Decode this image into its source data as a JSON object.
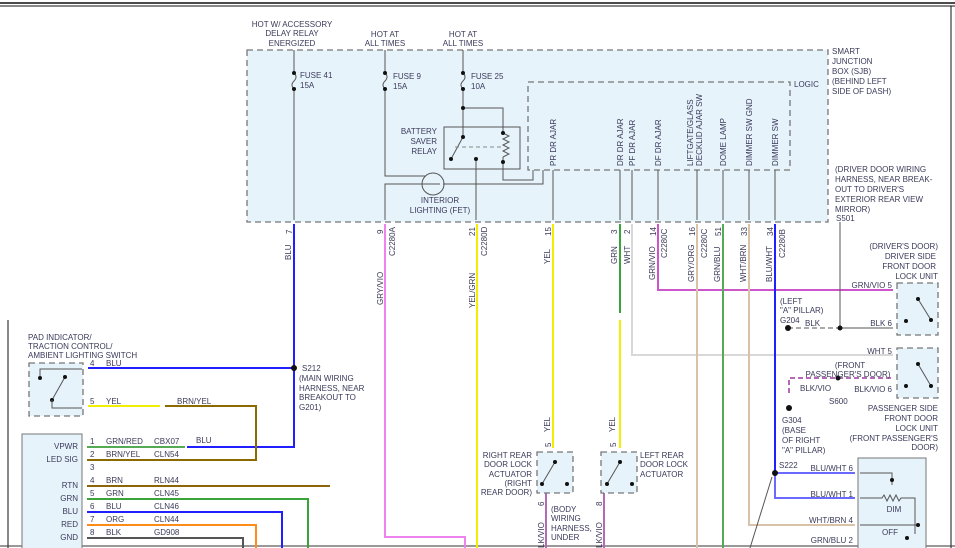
{
  "wire_colors": {
    "BLU": "#1f1fff",
    "GRYVIO": "#ee82ee",
    "YEL": "#f2ee00",
    "GRN": "#3aa33a",
    "WHT": "#d8d8d8",
    "GRNVIO": "#cc55cc",
    "TAN": "#d9c3a8",
    "GRNBLU": "#55aa55",
    "BRNYEL": "#8b6a00",
    "BRN": "#8b6508",
    "ORG": "#ff8c1a",
    "BLK": "#555555",
    "BLUWHT": "#6a6aff",
    "BLKVIO": "#b46ab4",
    "box_fill": "#e6f3fb"
  },
  "power": {
    "acc": [
      "HOT W/ ACCESSORY",
      "DELAY RELAY",
      "ENERGIZED"
    ],
    "hot1": [
      "HOT AT",
      "ALL TIMES"
    ],
    "hot2": [
      "HOT AT",
      "ALL TIMES"
    ]
  },
  "fuses": [
    {
      "name": "FUSE 41",
      "rating": "15A"
    },
    {
      "name": "FUSE 9",
      "rating": "15A"
    },
    {
      "name": "FUSE 25",
      "rating": "10A"
    }
  ],
  "relay": [
    "BATTERY",
    "SAVER",
    "RELAY"
  ],
  "fet": [
    "INTERIOR",
    "LIGHTING (FET)"
  ],
  "sjb": [
    "SMART",
    "JUNCTION",
    "BOX (SJB)",
    "(BEHIND LEFT",
    "SIDE OF DASH)"
  ],
  "logic": "LOGIC",
  "logic_pins": [
    "PR DR AJAR",
    "DR DR AJAR",
    "PF DR AJAR",
    "DF DR AJAR",
    "LIFTGATE/GLASS",
    "DECKLID AJAR SW",
    "DOME LAMP",
    "DIMMER SW GND",
    "DIMMER SW"
  ],
  "s501": [
    "(DRIVER DOOR WIRING",
    "HARNESS, NEAR BREAK-",
    "OUT TO DRIVER'S",
    "EXTERIOR REAR VIEW",
    "MIRROR)",
    "S501"
  ],
  "pins": {
    "p7": "7",
    "p9": "9",
    "p21": "21",
    "p15": "15",
    "p3": "3",
    "p2": "2",
    "p14": "14",
    "p16": "16",
    "p51": "51",
    "p33": "33",
    "p34": "34"
  },
  "connectors": {
    "a": "C2280A",
    "d": "C2280D",
    "c1": "C2280C",
    "c2": "C2280C",
    "b": "C2280B"
  },
  "wires": {
    "blu": "BLU",
    "gryvio": "GRY/VIO",
    "yelgrn": "YEL/GRN",
    "yel": "YEL",
    "grn": "GRN",
    "wht": "WHT",
    "grnvio": "GRN/VIO",
    "gryorg": "GRY/ORG",
    "grnblu": "GRN/BLU",
    "whtbrn": "WHT/BRN",
    "bluwht": "BLU/WHT",
    "yel2": "YEL",
    "yel3": "YEL",
    "lkvio1": "LK/VIO",
    "lkvio2": "LK/VIO"
  },
  "s212": [
    "S212",
    "(MAIN WIRING",
    "HARNESS, NEAR",
    "BREAKOUT TO",
    "G201)"
  ],
  "pad_switch": {
    "title": [
      "PAD INDICATOR/",
      "TRACTION CONTROL/",
      "AMBIENT LIGHTING SWITCH"
    ],
    "pin4": "4",
    "w4": "BLU",
    "pin5": "5",
    "w5": "YEL",
    "w5b": "BRN/YEL"
  },
  "module": {
    "rows": [
      {
        "label": "VPWR",
        "pin": "1",
        "wire": "GRN/RED",
        "circuit": "CBX07"
      },
      {
        "label": "LED SIG",
        "pin": "2",
        "wire": "BRN/YEL",
        "circuit": "CLN54"
      },
      {
        "label": "",
        "pin": "3",
        "wire": "",
        "circuit": ""
      },
      {
        "label": "RTN",
        "pin": "4",
        "wire": "BRN",
        "circuit": "RLN44"
      },
      {
        "label": "GRN",
        "pin": "5",
        "wire": "GRN",
        "circuit": "CLN45"
      },
      {
        "label": "BLU",
        "pin": "6",
        "wire": "BLU",
        "circuit": "CLN46"
      },
      {
        "label": "RED",
        "pin": "7",
        "wire": "ORG",
        "circuit": "CLN44"
      },
      {
        "label": "GND",
        "pin": "8",
        "wire": "BLK",
        "circuit": "GD908"
      }
    ],
    "blu_splice": "BLU"
  },
  "rr_actuator": {
    "label": [
      "RIGHT REAR",
      "DOOR LOCK",
      "ACTUATOR",
      "(RIGHT",
      "REAR DOOR)"
    ],
    "pin_top": "5",
    "pin_bot": "6",
    "note": [
      "(BODY",
      "WIRING",
      "HARNESS,",
      "UNDER"
    ]
  },
  "lr_actuator": {
    "label": [
      "LEFT REAR",
      "DOOR LOCK",
      "ACTUATOR"
    ],
    "pin_top": "5",
    "pin_bot": "8"
  },
  "driver_unit": {
    "label": [
      "(DRIVER'S DOOR)",
      "DRIVER SIDE",
      "FRONT DOOR",
      "LOCK UNIT"
    ],
    "pin5": "GRN/VIO 5",
    "pin6": "BLK 6"
  },
  "g204": {
    "label": [
      "(LEFT",
      "\"A\" PILLAR)",
      "G204"
    ],
    "wire": "BLK"
  },
  "passenger_unit": {
    "label": [
      "PASSENGER SIDE",
      "FRONT DOOR",
      "LOCK UNIT",
      "(FRONT PASSENGER'S",
      "DOOR)"
    ],
    "pin5": "WHT 5",
    "pin6": "BLK/VIO 6"
  },
  "s600": {
    "label": [
      "(FRONT",
      "PASSENGER'S DOOR)"
    ],
    "name": "S600",
    "wire": "BLK/VIO"
  },
  "g304": [
    "G304",
    "(BASE",
    "OF RIGHT",
    "\"A\" PILLAR)"
  ],
  "s222": "S222",
  "dimmer": {
    "pin6": "BLU/WHT 6",
    "pin1": "BLU/WHT  1",
    "pin4": "WHT/BRN 4",
    "pin2": "GRN/BLU 2",
    "dim": "DIM",
    "off": "OFF"
  }
}
